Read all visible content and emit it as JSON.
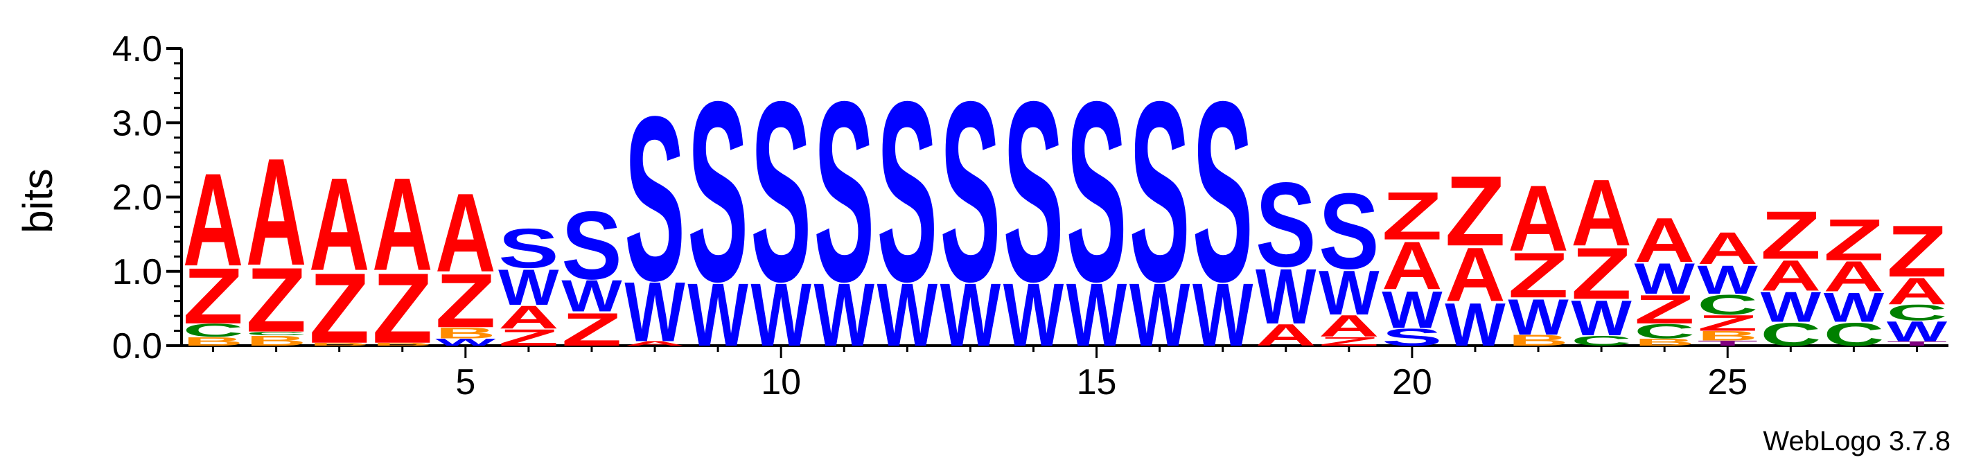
{
  "chart_data": {
    "type": "sequence-logo",
    "ylabel": "bits",
    "ylim": [
      0,
      4
    ],
    "yticks": [
      "0.0",
      "1.0",
      "2.0",
      "3.0",
      "4.0"
    ],
    "xlim": [
      0.5,
      28.5
    ],
    "xticks": [
      5,
      10,
      15,
      20,
      25
    ],
    "credit": "WebLogo 3.7.8",
    "colors": {
      "A": "#ff0000",
      "Z": "#ff0000",
      "S": "#0000ff",
      "W": "#0000ff",
      "C": "#008000",
      "B": "#ff8c00",
      "T": "#800080"
    },
    "positions": [
      {
        "pos": 1,
        "stack": [
          [
            "B",
            0.12
          ],
          [
            "C",
            0.18
          ],
          [
            "Z",
            0.78
          ],
          [
            "A",
            1.3
          ]
        ]
      },
      {
        "pos": 2,
        "stack": [
          [
            "B",
            0.14
          ],
          [
            "C",
            0.05
          ],
          [
            "Z",
            0.9
          ],
          [
            "A",
            1.5
          ]
        ]
      },
      {
        "pos": 3,
        "stack": [
          [
            "B",
            0.04
          ],
          [
            "Z",
            0.98
          ],
          [
            "A",
            1.3
          ]
        ]
      },
      {
        "pos": 4,
        "stack": [
          [
            "B",
            0.04
          ],
          [
            "Z",
            0.98
          ],
          [
            "A",
            1.3
          ]
        ]
      },
      {
        "pos": 5,
        "stack": [
          [
            "W",
            0.1
          ],
          [
            "B",
            0.15
          ],
          [
            "Z",
            0.75
          ],
          [
            "A",
            1.1
          ]
        ]
      },
      {
        "pos": 6,
        "stack": [
          [
            "Z",
            0.23
          ],
          [
            "A",
            0.32
          ],
          [
            "W",
            0.5
          ],
          [
            "S",
            0.55
          ]
        ]
      },
      {
        "pos": 7,
        "stack": [
          [
            "Z",
            0.46
          ],
          [
            "W",
            0.44
          ],
          [
            "S",
            0.95
          ]
        ]
      },
      {
        "pos": 8,
        "stack": [
          [
            "A",
            0.06
          ],
          [
            "W",
            0.83
          ],
          [
            "S",
            2.3
          ]
        ]
      },
      {
        "pos": 9,
        "stack": [
          [
            "W",
            0.88
          ],
          [
            "S",
            2.52
          ]
        ]
      },
      {
        "pos": 10,
        "stack": [
          [
            "W",
            0.88
          ],
          [
            "S",
            2.52
          ]
        ]
      },
      {
        "pos": 11,
        "stack": [
          [
            "W",
            0.88
          ],
          [
            "S",
            2.52
          ]
        ]
      },
      {
        "pos": 12,
        "stack": [
          [
            "W",
            0.88
          ],
          [
            "S",
            2.52
          ]
        ]
      },
      {
        "pos": 13,
        "stack": [
          [
            "W",
            0.88
          ],
          [
            "S",
            2.52
          ]
        ]
      },
      {
        "pos": 14,
        "stack": [
          [
            "W",
            0.88
          ],
          [
            "S",
            2.52
          ]
        ]
      },
      {
        "pos": 15,
        "stack": [
          [
            "W",
            0.88
          ],
          [
            "S",
            2.52
          ]
        ]
      },
      {
        "pos": 16,
        "stack": [
          [
            "W",
            0.88
          ],
          [
            "S",
            2.52
          ]
        ]
      },
      {
        "pos": 17,
        "stack": [
          [
            "W",
            0.88
          ],
          [
            "S",
            2.52
          ]
        ]
      },
      {
        "pos": 18,
        "stack": [
          [
            "A",
            0.3
          ],
          [
            "W",
            0.77
          ],
          [
            "S",
            1.18
          ]
        ]
      },
      {
        "pos": 19,
        "stack": [
          [
            "Z",
            0.12
          ],
          [
            "A",
            0.3
          ],
          [
            "W",
            0.62
          ],
          [
            "S",
            1.06
          ]
        ]
      },
      {
        "pos": 20,
        "stack": [
          [
            "S",
            0.24
          ],
          [
            "W",
            0.52
          ],
          [
            "A",
            0.67
          ],
          [
            "Z",
            0.67
          ]
        ]
      },
      {
        "pos": 21,
        "stack": [
          [
            "W",
            0.6
          ],
          [
            "A",
            0.75
          ],
          [
            "Z",
            0.98
          ]
        ]
      },
      {
        "pos": 22,
        "stack": [
          [
            "B",
            0.15
          ],
          [
            "W",
            0.5
          ],
          [
            "Z",
            0.63
          ],
          [
            "A",
            0.92
          ]
        ]
      },
      {
        "pos": 23,
        "stack": [
          [
            "C",
            0.14
          ],
          [
            "W",
            0.49
          ],
          [
            "Z",
            0.72
          ],
          [
            "A",
            0.93
          ]
        ]
      },
      {
        "pos": 24,
        "stack": [
          [
            "B",
            0.1
          ],
          [
            "C",
            0.2
          ],
          [
            "Z",
            0.4
          ],
          [
            "W",
            0.43
          ],
          [
            "A",
            0.62
          ]
        ]
      },
      {
        "pos": 25,
        "stack": [
          [
            "T",
            0.07
          ],
          [
            "B",
            0.13
          ],
          [
            "Z",
            0.22
          ],
          [
            "C",
            0.28
          ],
          [
            "W",
            0.4
          ],
          [
            "A",
            0.45
          ]
        ]
      },
      {
        "pos": 26,
        "stack": [
          [
            "C",
            0.32
          ],
          [
            "W",
            0.42
          ],
          [
            "A",
            0.43
          ],
          [
            "Z",
            0.67
          ]
        ]
      },
      {
        "pos": 27,
        "stack": [
          [
            "C",
            0.32
          ],
          [
            "W",
            0.41
          ],
          [
            "A",
            0.42
          ],
          [
            "Z",
            0.58
          ]
        ]
      },
      {
        "pos": 28,
        "stack": [
          [
            "T",
            0.06
          ],
          [
            "W",
            0.28
          ],
          [
            "C",
            0.22
          ],
          [
            "A",
            0.37
          ],
          [
            "Z",
            0.72
          ]
        ]
      }
    ]
  }
}
